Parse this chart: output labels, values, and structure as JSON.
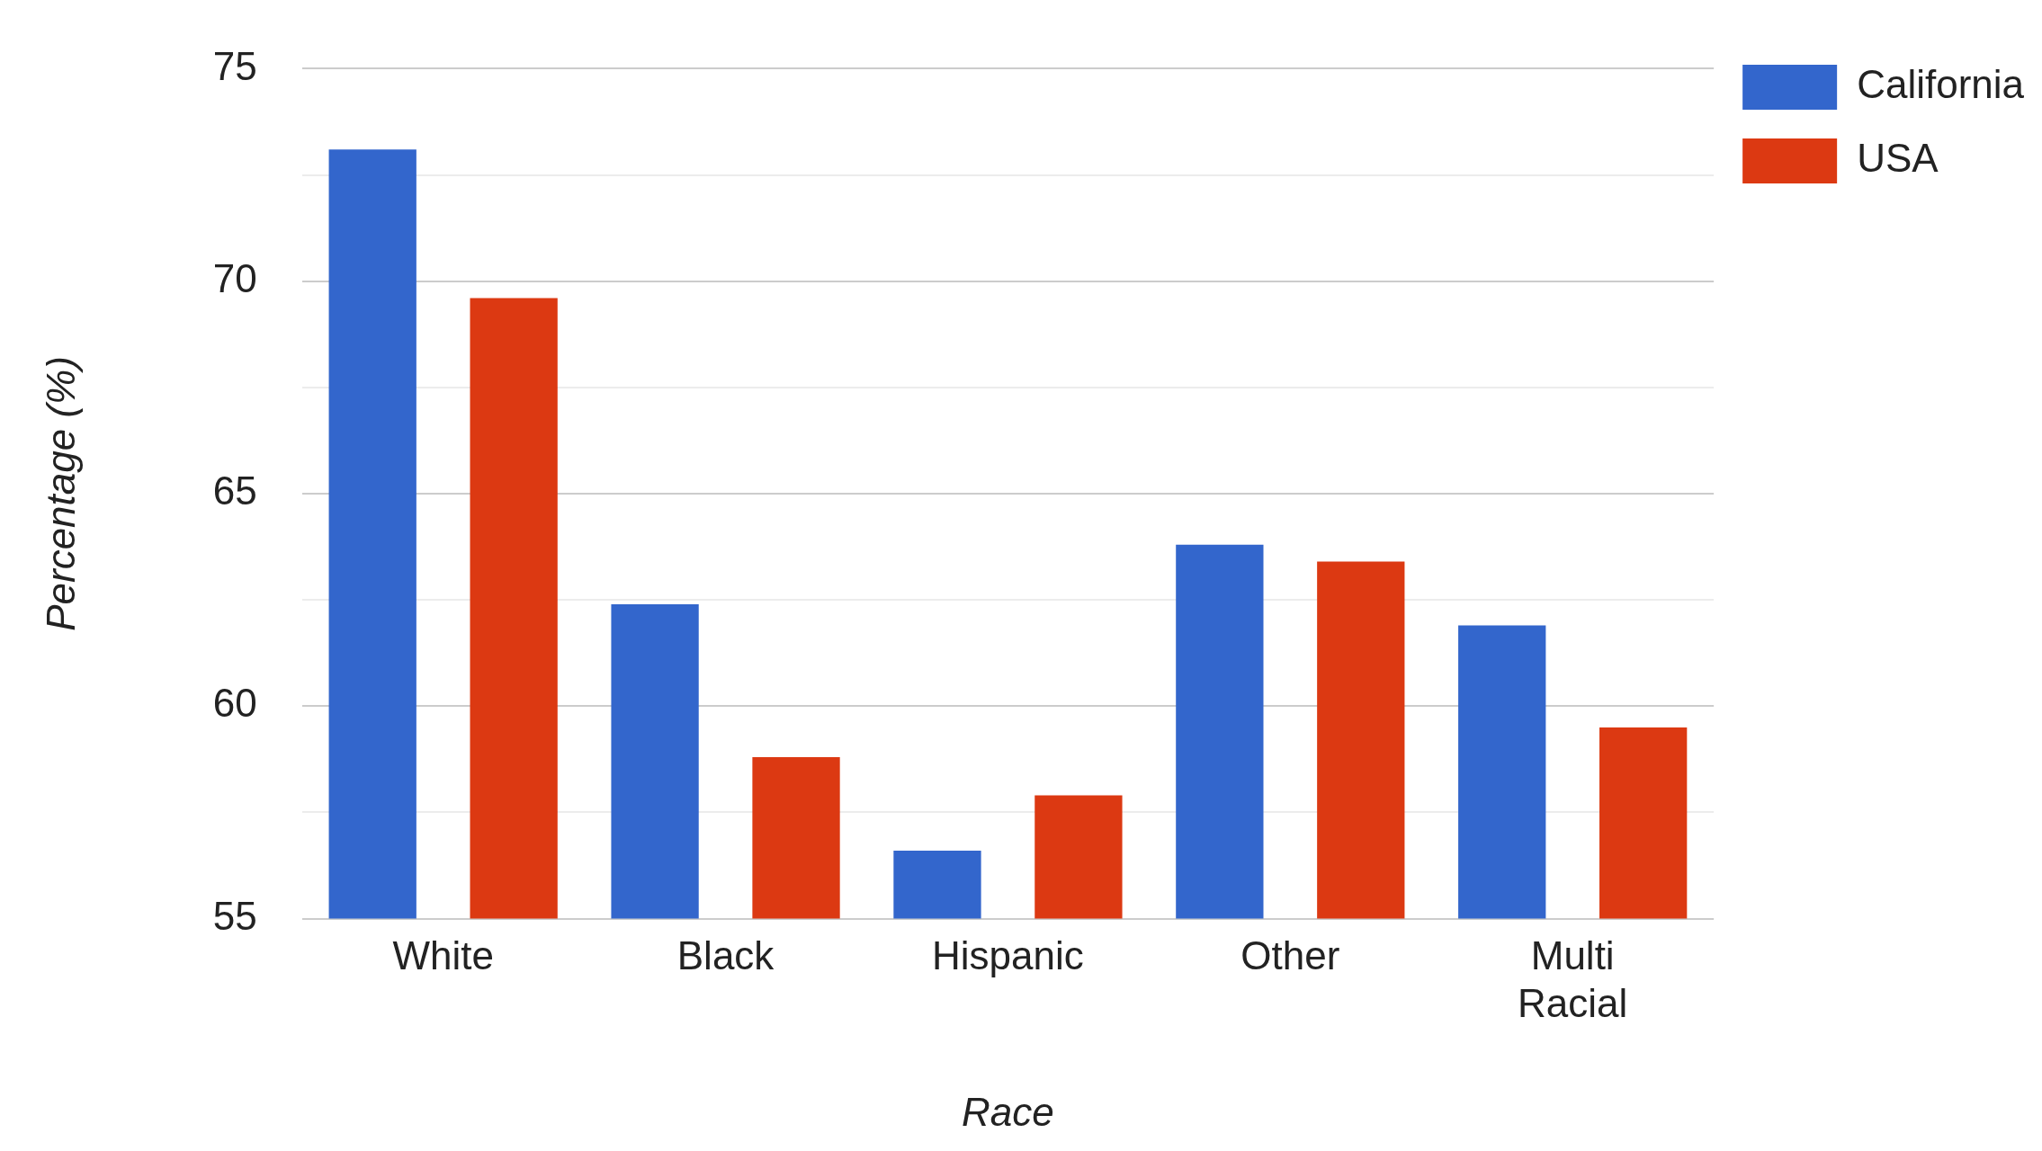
{
  "chart_data": {
    "type": "bar",
    "xlabel": "Race",
    "ylabel": "Percentage (%)",
    "categories": [
      "White",
      "Black",
      "Hispanic",
      "Other",
      "Multi Racial"
    ],
    "series": [
      {
        "name": "California",
        "color": "#3366cc",
        "values": [
          73.1,
          62.4,
          56.6,
          63.8,
          61.9
        ]
      },
      {
        "name": "USA",
        "color": "#dc3912",
        "values": [
          69.6,
          58.8,
          57.9,
          63.4,
          59.5
        ]
      }
    ],
    "ylim": [
      55,
      75
    ],
    "yticks": [
      55,
      {
        "value": 57.5,
        "label": null
      },
      60,
      {
        "value": 62.5,
        "label": null
      },
      65,
      {
        "value": 67.5,
        "label": null
      },
      70,
      {
        "value": 72.5,
        "label": null
      },
      75
    ],
    "grid": "y",
    "legend": "top right"
  }
}
